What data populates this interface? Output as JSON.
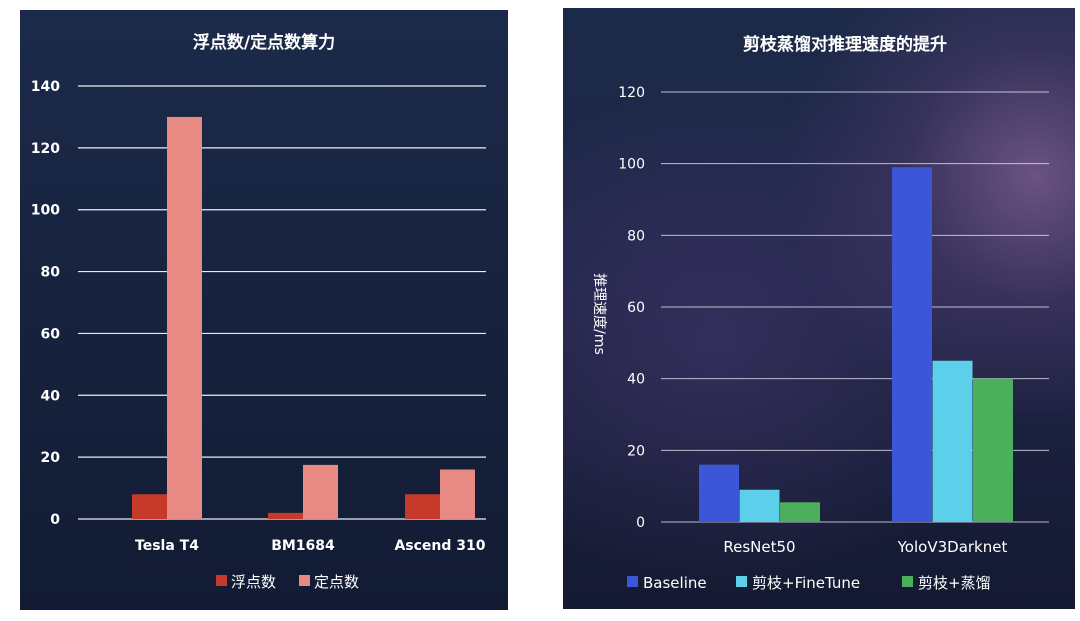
{
  "chart_data": [
    {
      "type": "bar",
      "title": "浮点数/定点数算力",
      "xlabel": "",
      "ylabel": "",
      "categories": [
        "Tesla T4",
        "BM1684",
        "Ascend 310"
      ],
      "series": [
        {
          "name": "浮点数",
          "values": [
            8,
            2,
            8
          ],
          "color": "#c53a2a"
        },
        {
          "name": "定点数",
          "values": [
            130,
            17.5,
            16
          ],
          "color": "#e88a84"
        }
      ],
      "ylim": [
        0,
        140
      ],
      "yticks": [
        0,
        20,
        40,
        60,
        80,
        100,
        120,
        140
      ],
      "grid": true,
      "legend_position": "bottom"
    },
    {
      "type": "bar",
      "title": "剪枝蒸馏对推理速度的提升",
      "xlabel": "",
      "ylabel": "推理速度/ms",
      "categories": [
        "ResNet50",
        "YoloV3Darknet"
      ],
      "series": [
        {
          "name": "Baseline",
          "values": [
            16,
            99
          ],
          "color": "#3b57d8"
        },
        {
          "name": "剪枝+FineTune",
          "values": [
            9,
            45
          ],
          "color": "#5ccfea"
        },
        {
          "name": "剪枝+蒸馏",
          "values": [
            5.5,
            40
          ],
          "color": "#4caf5c"
        }
      ],
      "ylim": [
        0,
        120
      ],
      "yticks": [
        0,
        20,
        40,
        60,
        80,
        100,
        120
      ],
      "grid": true,
      "legend_position": "bottom"
    }
  ]
}
